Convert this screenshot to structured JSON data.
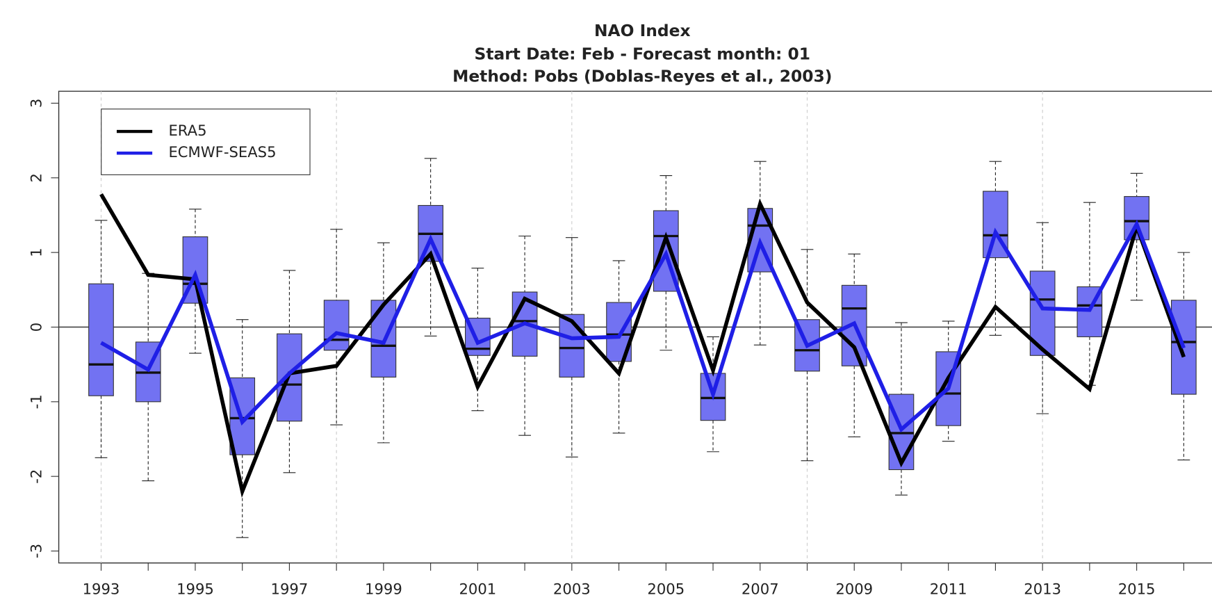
{
  "chart_data": {
    "type": "box",
    "title": "NAO Index",
    "subtitle": [
      "Start Date: Feb - Forecast month: 01",
      "Method: Pobs (Doblas-Reyes et al., 2003)"
    ],
    "x": [
      1993,
      1994,
      1995,
      1996,
      1997,
      1998,
      1999,
      2000,
      2001,
      2002,
      2003,
      2004,
      2005,
      2006,
      2007,
      2008,
      2009,
      2010,
      2011,
      2012,
      2013,
      2014,
      2015,
      2016
    ],
    "boxes": {
      "color": "#7272f2",
      "high": [
        1.43,
        0.72,
        1.58,
        0.1,
        0.76,
        1.31,
        1.13,
        2.26,
        0.79,
        1.22,
        1.2,
        0.89,
        2.03,
        -0.13,
        2.22,
        1.04,
        0.98,
        0.06,
        0.08,
        2.22,
        1.4,
        1.67,
        2.06,
        1.0
      ],
      "q3": [
        0.58,
        -0.2,
        1.21,
        -0.68,
        -0.09,
        0.36,
        0.36,
        1.63,
        0.12,
        0.47,
        0.17,
        0.33,
        1.56,
        -0.62,
        1.59,
        0.1,
        0.56,
        -0.9,
        -0.33,
        1.82,
        0.75,
        0.54,
        1.75,
        0.36
      ],
      "median": [
        -0.5,
        -0.61,
        0.58,
        -1.22,
        -0.77,
        -0.17,
        -0.25,
        1.25,
        -0.29,
        0.08,
        -0.28,
        -0.1,
        1.22,
        -0.95,
        1.36,
        -0.31,
        0.25,
        -1.42,
        -0.89,
        1.23,
        0.37,
        0.29,
        1.42,
        -0.2
      ],
      "q1": [
        -0.92,
        -1.0,
        0.32,
        -1.71,
        -1.26,
        -0.31,
        -0.67,
        0.88,
        -0.38,
        -0.39,
        -0.67,
        -0.46,
        0.48,
        -1.25,
        0.74,
        -0.59,
        -0.52,
        -1.91,
        -1.32,
        0.93,
        -0.38,
        -0.13,
        1.17,
        -0.9
      ],
      "low": [
        -1.75,
        -2.06,
        -0.35,
        -2.82,
        -1.95,
        -1.31,
        -1.55,
        -0.12,
        -1.12,
        -1.45,
        -1.74,
        -1.42,
        -0.31,
        -1.67,
        -0.24,
        -1.79,
        -1.47,
        -2.25,
        -1.53,
        -0.11,
        -1.16,
        -0.78,
        0.36,
        -1.78
      ]
    },
    "series": [
      {
        "name": "ERA5",
        "color": "#000000",
        "values": [
          1.78,
          0.7,
          0.64,
          -2.2,
          -0.62,
          -0.52,
          0.3,
          0.98,
          -0.8,
          0.38,
          0.08,
          -0.62,
          1.2,
          -0.58,
          1.65,
          0.33,
          -0.27,
          -1.82,
          -0.68,
          0.27,
          -0.3,
          -0.83,
          1.35,
          -0.4
        ]
      },
      {
        "name": "ECMWF-SEAS5",
        "color": "#1f1fe6",
        "values": [
          -0.21,
          -0.57,
          0.7,
          -1.27,
          -0.62,
          -0.08,
          -0.21,
          1.18,
          -0.21,
          0.05,
          -0.15,
          -0.13,
          0.98,
          -0.9,
          1.13,
          -0.25,
          0.05,
          -1.37,
          -0.82,
          1.27,
          0.25,
          0.23,
          1.38,
          -0.28
        ]
      }
    ],
    "xlim": [
      1992.1,
      2016.6
    ],
    "ylim": [
      -3.16,
      3.16
    ],
    "yticks": [
      -3,
      -2,
      -1,
      0,
      1,
      2,
      3
    ],
    "xticks": [
      1993,
      {
        "value": 1994,
        "label": null
      },
      1995,
      {
        "value": 1996,
        "label": null
      },
      1997,
      {
        "value": 1998,
        "label": null
      },
      1999,
      {
        "value": 2000,
        "label": null
      },
      2001,
      {
        "value": 2002,
        "label": null
      },
      2003,
      {
        "value": 2004,
        "label": null
      },
      2005,
      {
        "value": 2006,
        "label": null
      },
      2007,
      {
        "value": 2008,
        "label": null
      },
      2009,
      {
        "value": 2010,
        "label": null
      },
      2011,
      {
        "value": 2012,
        "label": null
      },
      2013,
      {
        "value": 2014,
        "label": null
      },
      2015,
      {
        "value": 2016,
        "label": null
      }
    ],
    "xgrid": [
      1993,
      1998,
      2003,
      2008,
      2013
    ],
    "hline": 0,
    "legend": "top-left"
  }
}
